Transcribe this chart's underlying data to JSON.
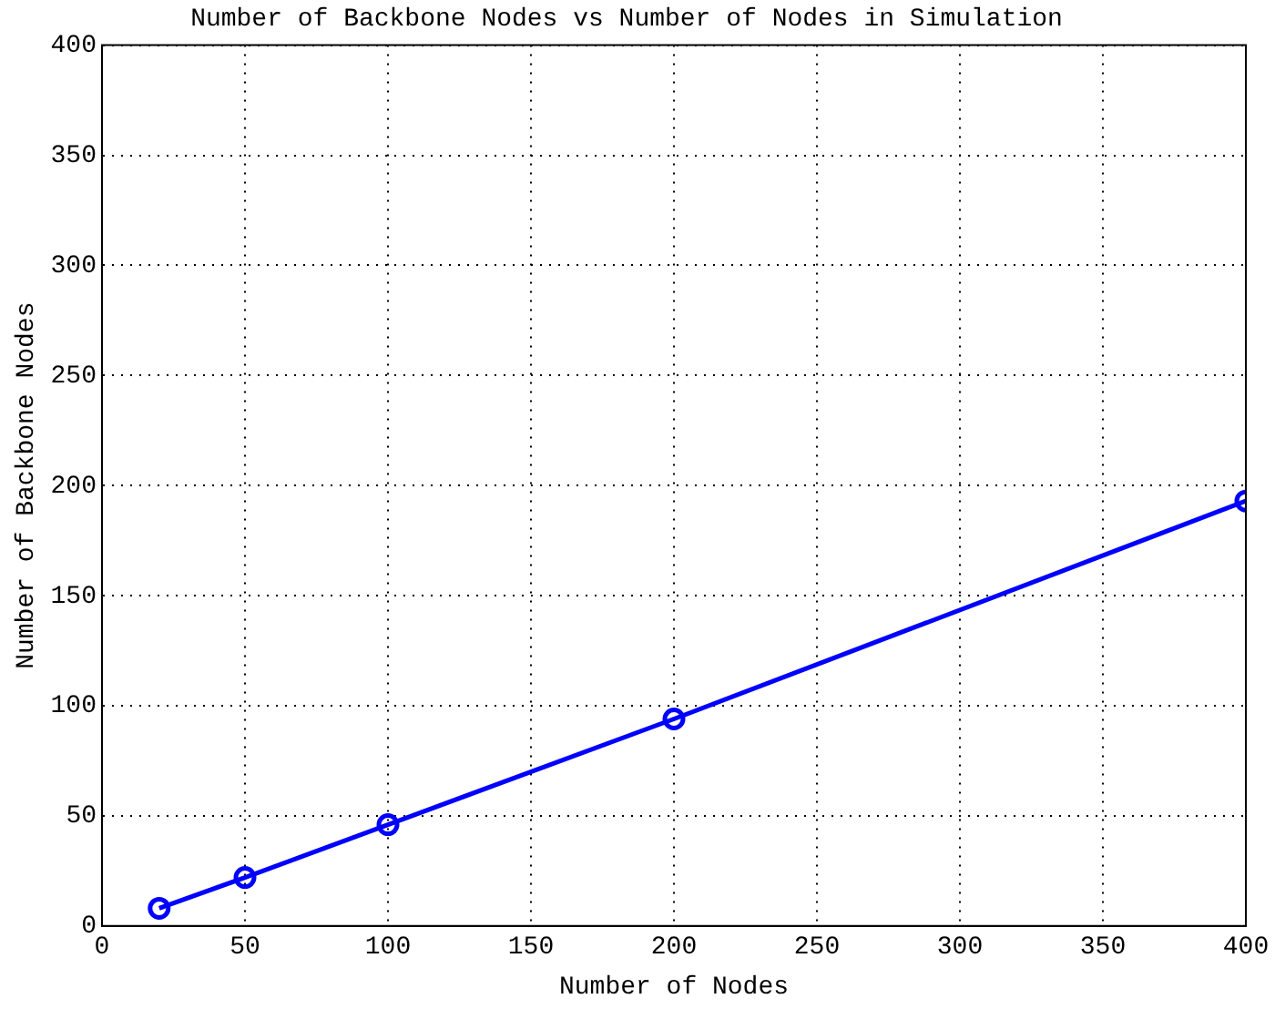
{
  "chart_data": {
    "type": "line",
    "title": "Number of Backbone Nodes vs Number of Nodes in Simulation",
    "xlabel": "Number of Nodes",
    "ylabel": "Number of Backbone Nodes",
    "x": [
      20,
      50,
      100,
      200,
      400
    ],
    "series": [
      {
        "color": "#0000ff",
        "values": [
          8,
          22,
          46,
          94,
          193
        ]
      }
    ],
    "xlim": [
      0,
      400
    ],
    "xticks": [
      0,
      50,
      100,
      150,
      200,
      250,
      300,
      350,
      400
    ],
    "ylim": [
      0,
      400
    ],
    "yticks": [
      0,
      50,
      100,
      150,
      200,
      250,
      300,
      350,
      400
    ],
    "grid": true,
    "marker": "circle",
    "line_style": "solid",
    "legend": false
  }
}
